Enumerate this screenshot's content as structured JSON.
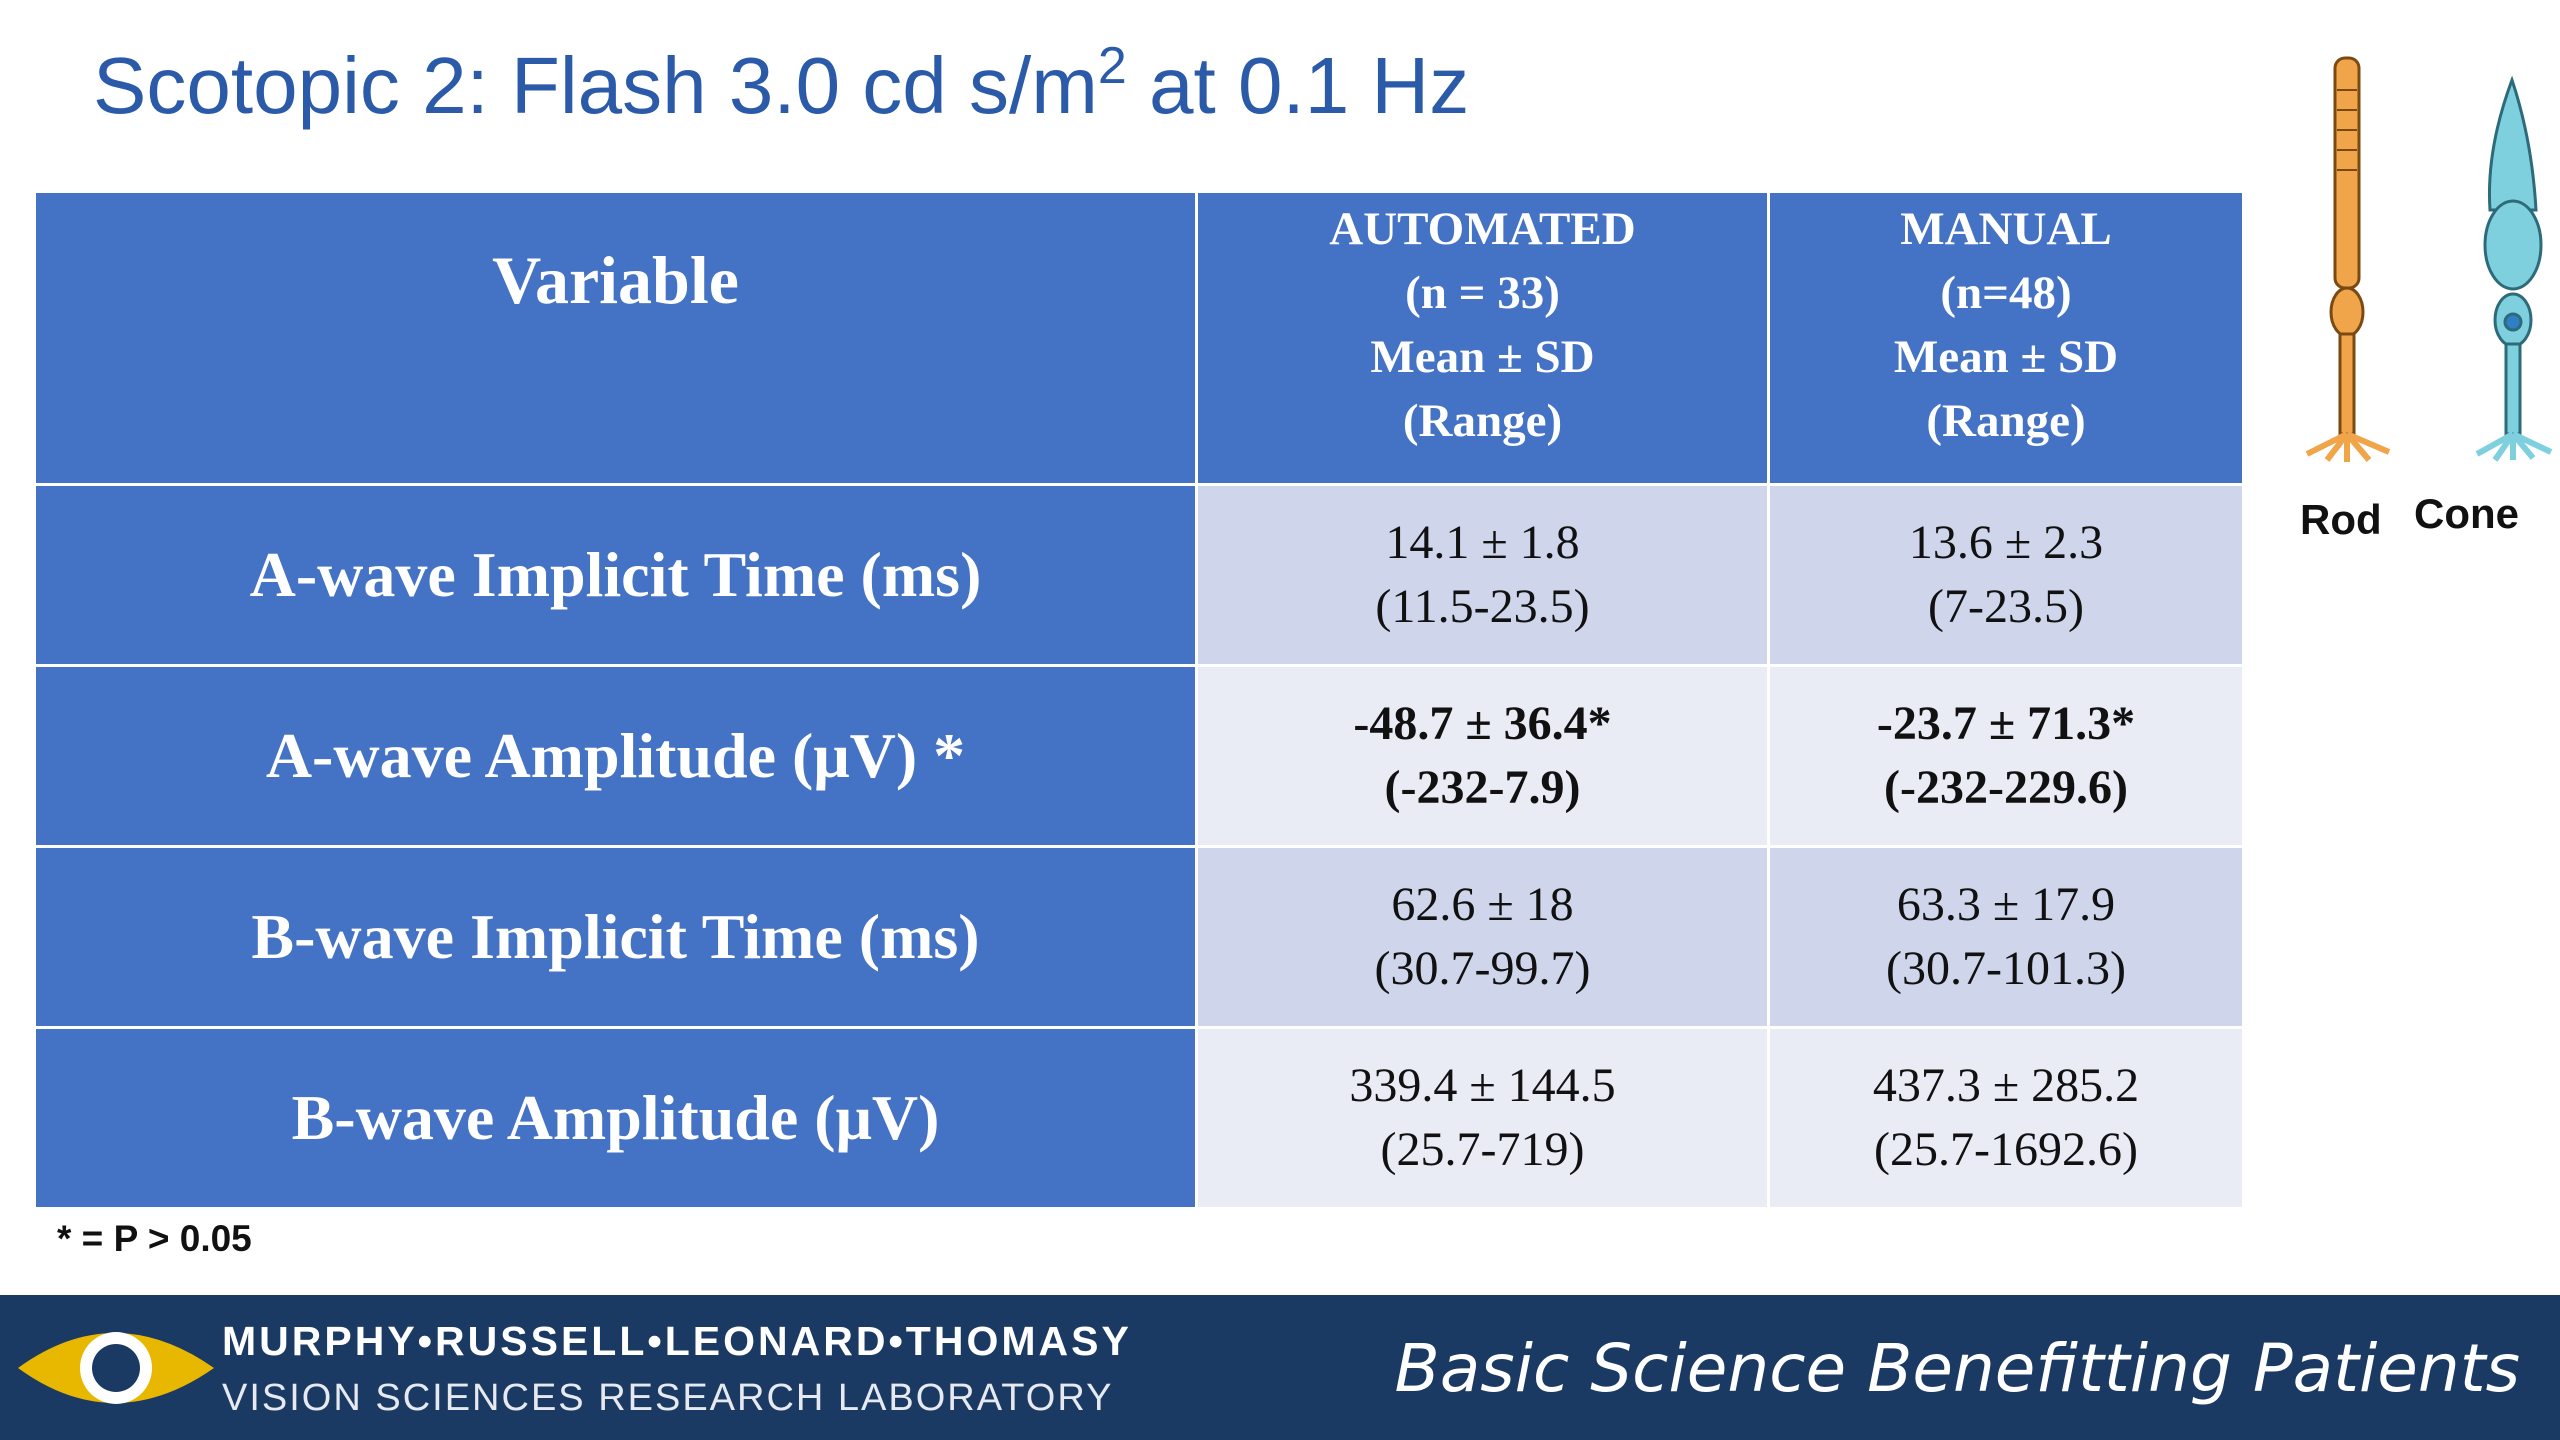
{
  "title": {
    "text": "Scotopic 2: Flash 3.0 cd s/m",
    "superscript": "2",
    "suffix": " at 0.1 Hz"
  },
  "table": {
    "header": {
      "variable": "Variable",
      "columns": [
        [
          "AUTOMATED",
          "(n = 33)",
          "Mean ± SD",
          "(Range)"
        ],
        [
          "MANUAL",
          "(n=48)",
          "Mean ± SD",
          "(Range)"
        ]
      ]
    },
    "rows": [
      {
        "label": "A-wave Implicit Time (ms)",
        "cells": [
          [
            "14.1 ± 1.8",
            "(11.5-23.5)"
          ],
          [
            "13.6 ± 2.3",
            "(7-23.5)"
          ]
        ]
      },
      {
        "label": "A-wave Amplitude (μV) *",
        "bold": true,
        "cells": [
          [
            "-48.7 ± 36.4*",
            "(-232-7.9)"
          ],
          [
            "-23.7 ± 71.3*",
            "(-232-229.6)"
          ]
        ]
      },
      {
        "label": "B-wave Implicit Time (ms)",
        "cells": [
          [
            "62.6 ± 18",
            "(30.7-99.7)"
          ],
          [
            "63.3 ± 17.9",
            "(30.7-101.3)"
          ]
        ]
      },
      {
        "label": "B-wave Amplitude (μV)",
        "cells": [
          [
            "339.4 ± 144.5",
            "(25.7-719)"
          ],
          [
            "437.3 ± 285.2",
            "(25.7-1692.6)"
          ]
        ]
      }
    ]
  },
  "footnote": "* = P > 0.05",
  "photoreceptors": {
    "rod": "Rod",
    "cone": "Cone"
  },
  "footer": {
    "lab_name": "MURPHY•RUSSELL•LEONARD•THOMASY",
    "lab_subtitle": "VISION SCIENCES RESEARCH LABORATORY",
    "slogan": "Basic Science Benefitting Patients"
  }
}
